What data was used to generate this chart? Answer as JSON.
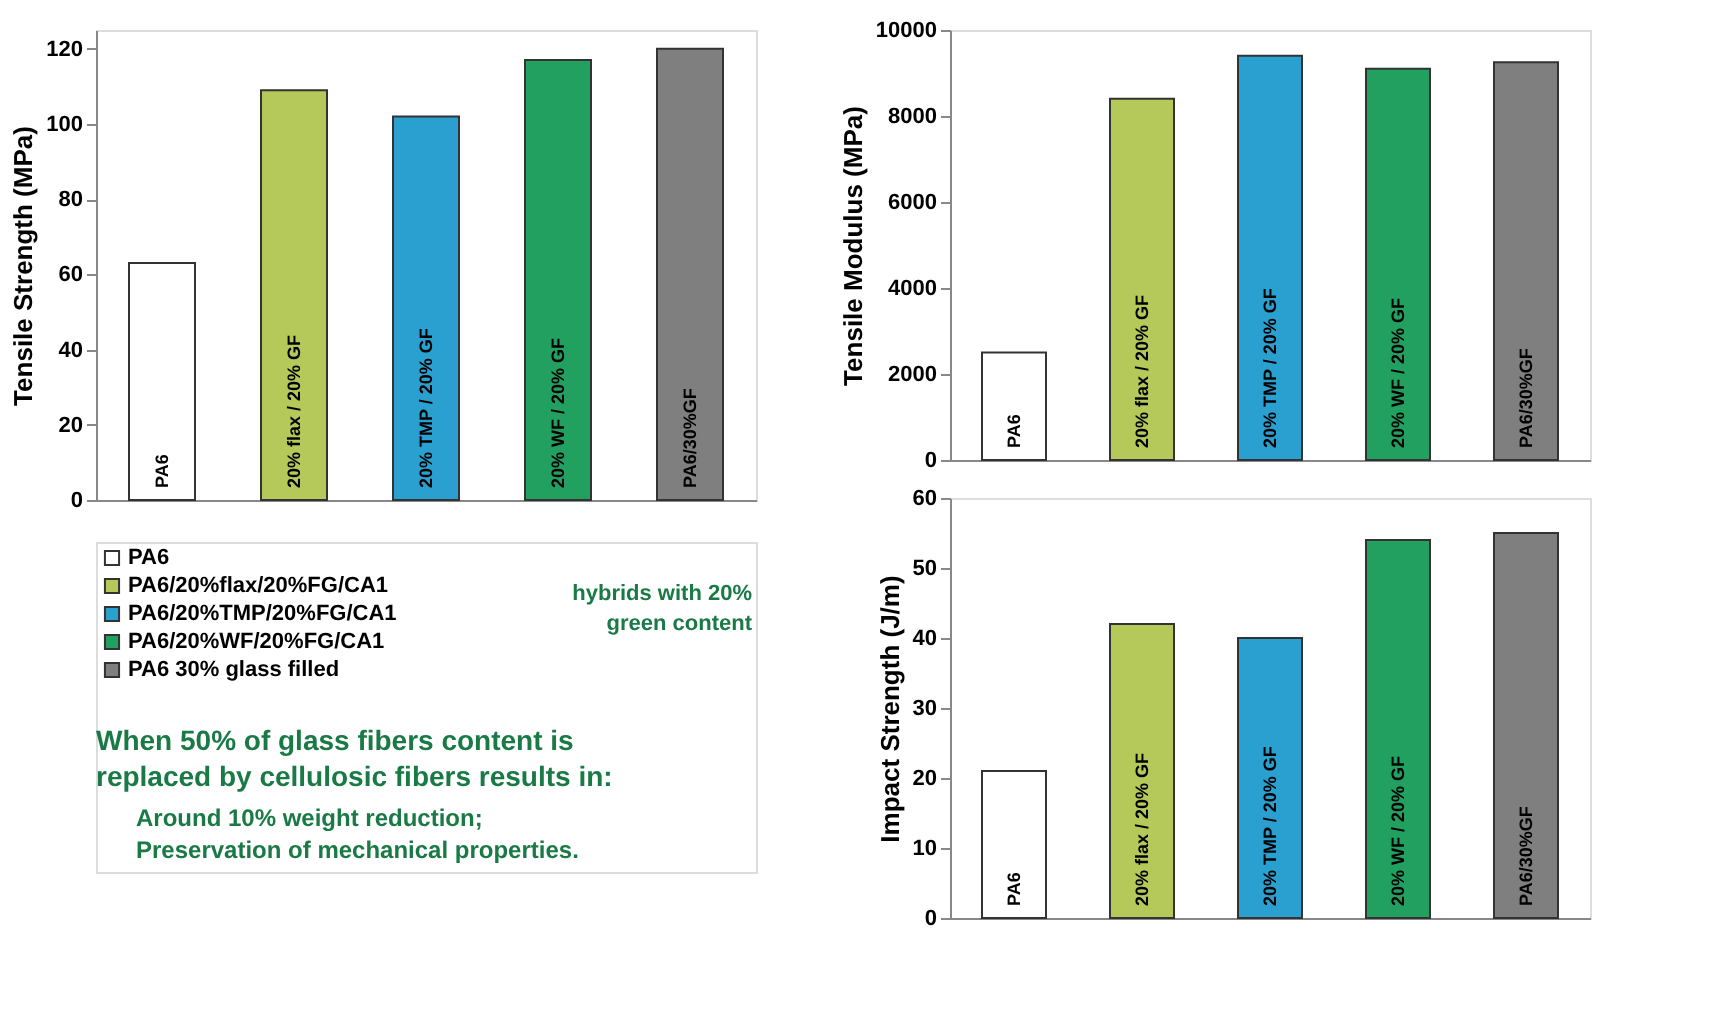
{
  "chart_data": [
    {
      "type": "bar",
      "ylabel": "Tensile Strength (MPa)",
      "categories": [
        "PA6",
        "20% flax / 20% GF",
        "20% TMP / 20% GF",
        "20% WF / 20% GF",
        "PA6/30%GF"
      ],
      "series": [
        {
          "name": "PA6",
          "color": "#ffffff",
          "values": [
            63,
            null,
            null,
            null,
            null
          ]
        },
        {
          "name": "PA6/20%flax/20%FG/CA1",
          "color": "#b5c85a",
          "values": [
            null,
            109,
            null,
            null,
            null
          ]
        },
        {
          "name": "PA6/20%TMP/20%FG/CA1",
          "color": "#2aa0d0",
          "values": [
            null,
            null,
            102,
            null,
            null
          ]
        },
        {
          "name": "PA6/20%WF/20%FG/CA1",
          "color": "#22a060",
          "values": [
            null,
            null,
            null,
            117,
            null
          ]
        },
        {
          "name": "PA6 30% glass filled",
          "color": "#7f7f7f",
          "values": [
            null,
            null,
            null,
            null,
            120
          ]
        }
      ],
      "ylim": [
        0,
        125
      ],
      "yticks": [
        0,
        20,
        40,
        60,
        80,
        100,
        120
      ],
      "grid": false,
      "legend": "bottom",
      "tick_labels": "y",
      "annotations": [
        "hybrids with 20% green content",
        "When 50% of glass fibers content is replaced by cellulosic fibers results in:",
        "Around 10% weight reduction;",
        "Preservation of mechanical properties."
      ]
    },
    {
      "type": "bar",
      "ylabel": "Tensile Modulus (MPa)",
      "categories": [
        "PA6",
        "20% flax / 20% GF",
        "20% TMP / 20% GF",
        "20% WF / 20% GF",
        "PA6/30%GF"
      ],
      "series": [
        {
          "color": "#ffffff",
          "values": [
            2500,
            null,
            null,
            null,
            null
          ]
        },
        {
          "color": "#b5c85a",
          "values": [
            null,
            8400,
            null,
            null,
            null
          ]
        },
        {
          "color": "#2aa0d0",
          "values": [
            null,
            null,
            9400,
            null,
            null
          ]
        },
        {
          "color": "#22a060",
          "values": [
            null,
            null,
            null,
            9100,
            null
          ]
        },
        {
          "color": "#7f7f7f",
          "values": [
            null,
            null,
            null,
            null,
            9250
          ]
        }
      ],
      "ylim": [
        0,
        10000
      ],
      "yticks": [
        0,
        2000,
        4000,
        6000,
        8000,
        10000
      ],
      "grid": false,
      "tick_labels": "y"
    },
    {
      "type": "bar",
      "ylabel": "Impact Strength (J/m)",
      "categories": [
        "PA6",
        "20% flax / 20% GF",
        "20% TMP / 20% GF",
        "20% WF / 20% GF",
        "PA6/30%GF"
      ],
      "series": [
        {
          "color": "#ffffff",
          "values": [
            21,
            null,
            null,
            null,
            null
          ]
        },
        {
          "color": "#b5c85a",
          "values": [
            null,
            42,
            null,
            null,
            null
          ]
        },
        {
          "color": "#2aa0d0",
          "values": [
            null,
            null,
            40,
            null,
            null
          ]
        },
        {
          "color": "#22a060",
          "values": [
            null,
            null,
            null,
            54,
            null
          ]
        },
        {
          "color": "#7f7f7f",
          "values": [
            null,
            null,
            null,
            null,
            55
          ]
        }
      ],
      "ylim": [
        0,
        60
      ],
      "yticks": [
        0,
        10,
        20,
        30,
        40,
        50,
        60
      ],
      "grid": false,
      "tick_labels": "y"
    }
  ]
}
